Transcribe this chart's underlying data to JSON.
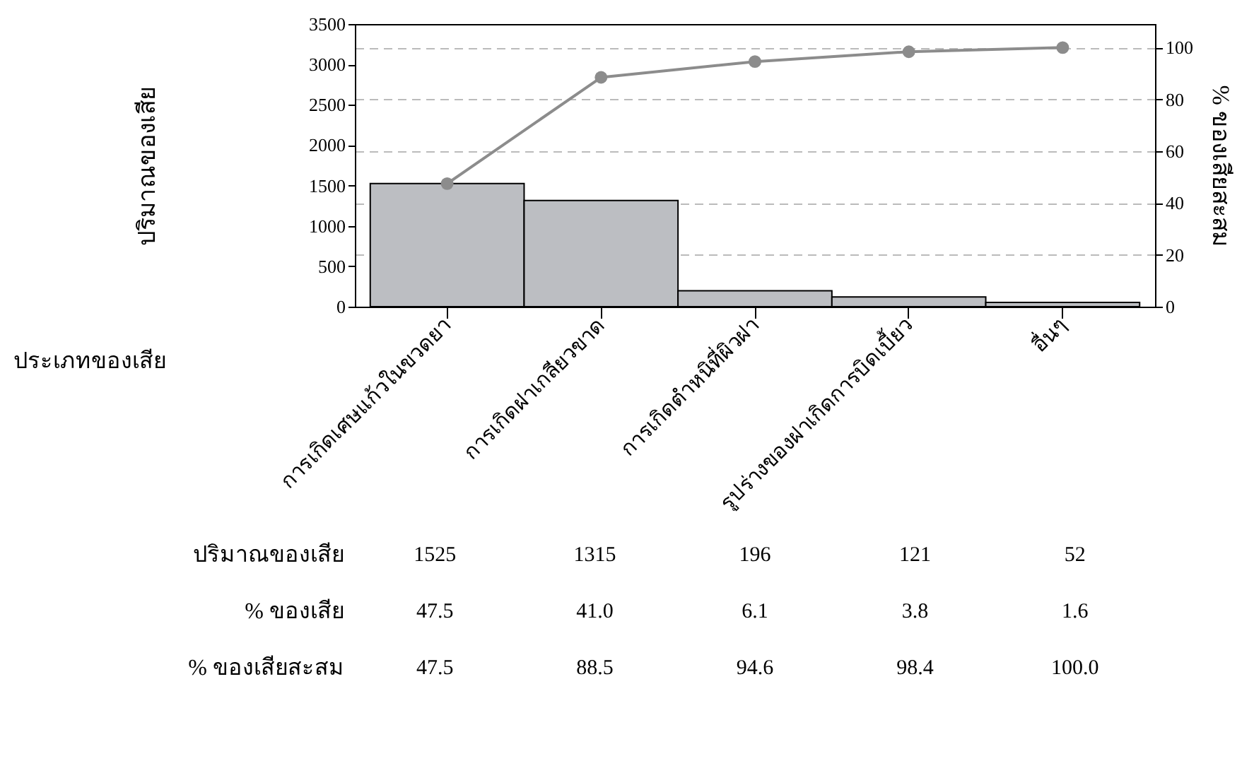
{
  "chart_data": {
    "type": "bar",
    "xlabel": "ประเภทของเสีย",
    "ylabel": "ปริมาณของเสีย",
    "y2label": "% ของเสียสะสม",
    "categories": [
      "การเกิดเศษแก้วในขวดยา",
      "การเกิดฝาเกลียวขาด",
      "การเกิดตำหนิที่ผิวฝา",
      "รูปร่างของฝาเกิดการบิดเบี้ยว",
      "อื่นๆ"
    ],
    "series": [
      {
        "color": "#bcbec2",
        "values": [
          1525,
          1315,
          196,
          121,
          52
        ],
        "value_labels": [
          "1525",
          "1315",
          "196",
          "121",
          "52"
        ]
      },
      {
        "type": "line",
        "axis": "y2",
        "color": "#8c8c8c",
        "marker": "circle",
        "values": [
          47.5,
          88.5,
          94.6,
          98.4,
          100.0
        ],
        "value_labels": [
          "47.5",
          "88.5",
          "94.6",
          "98.4",
          "100.0"
        ]
      }
    ],
    "annotations": [
      "ปริมาณของเสีย",
      "% ของเสีย",
      "% ของเสียสะสม",
      "47.5",
      "41.0",
      "6.1",
      "3.8",
      "1.6"
    ],
    "ylim": [
      0,
      3500
    ],
    "yticks": [
      0,
      500,
      1000,
      1500,
      2000,
      2500,
      3000,
      3500
    ],
    "y2lim": [
      0,
      109.1
    ],
    "y2ticks": [
      0,
      20,
      40,
      60,
      80,
      100
    ],
    "grid": "y2"
  }
}
